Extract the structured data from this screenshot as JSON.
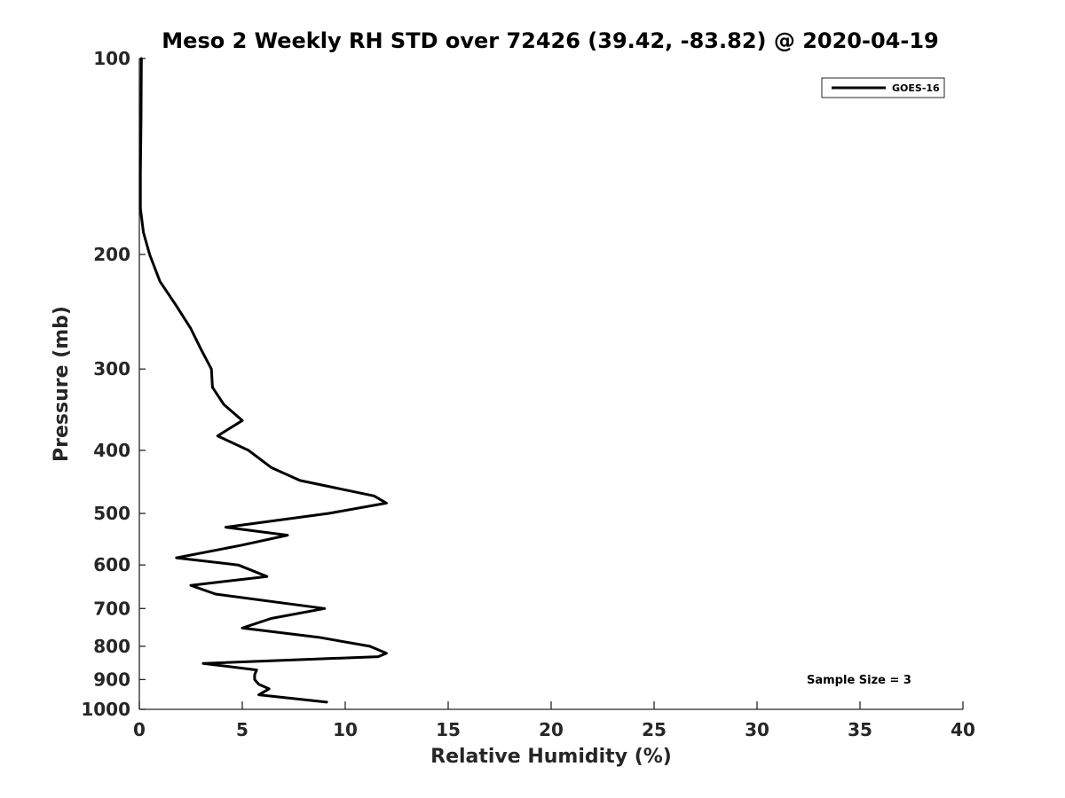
{
  "chart_data": {
    "type": "line",
    "title": "Meso 2 Weekly RH STD over 72426 (39.42, -83.82) @ 2020-04-19",
    "xlabel": "Relative Humidity (%)",
    "ylabel": "Pressure (mb)",
    "xlim": [
      0,
      40
    ],
    "ylim": [
      100,
      1000
    ],
    "y_scale": "log",
    "y_reversed": true,
    "x_ticks": [
      "0",
      "5",
      "10",
      "15",
      "20",
      "25",
      "30",
      "35",
      "40"
    ],
    "y_ticks": [
      "100",
      "200",
      "300",
      "400",
      "500",
      "600",
      "700",
      "800",
      "900",
      "1000"
    ],
    "grid": false,
    "legend": {
      "position": "top-right",
      "entries": [
        "GOES-16"
      ]
    },
    "annotation": "Sample Size = 3",
    "series": [
      {
        "name": "GOES-16",
        "color": "#000000",
        "points": [
          [
            0.1,
            100
          ],
          [
            0.08,
            125
          ],
          [
            0.05,
            150
          ],
          [
            0.05,
            170
          ],
          [
            0.2,
            185
          ],
          [
            0.5,
            200
          ],
          [
            1.0,
            220
          ],
          [
            1.8,
            240
          ],
          [
            2.5,
            260
          ],
          [
            3.0,
            280
          ],
          [
            3.5,
            300
          ],
          [
            3.55,
            320
          ],
          [
            4.1,
            340
          ],
          [
            5.0,
            360
          ],
          [
            3.8,
            380
          ],
          [
            5.3,
            400
          ],
          [
            6.4,
            425
          ],
          [
            7.8,
            445
          ],
          [
            11.4,
            470
          ],
          [
            12.0,
            482
          ],
          [
            9.2,
            500
          ],
          [
            4.2,
            525
          ],
          [
            7.2,
            540
          ],
          [
            4.9,
            560
          ],
          [
            1.8,
            585
          ],
          [
            4.8,
            600
          ],
          [
            6.2,
            625
          ],
          [
            2.5,
            645
          ],
          [
            3.7,
            665
          ],
          [
            9.0,
            700
          ],
          [
            6.4,
            725
          ],
          [
            5.0,
            750
          ],
          [
            8.7,
            775
          ],
          [
            11.2,
            800
          ],
          [
            12.0,
            820
          ],
          [
            11.6,
            830
          ],
          [
            3.1,
            850
          ],
          [
            5.7,
            870
          ],
          [
            5.6,
            885
          ],
          [
            5.6,
            900
          ],
          [
            5.8,
            915
          ],
          [
            6.3,
            930
          ],
          [
            5.8,
            950
          ],
          [
            9.1,
            975
          ]
        ]
      }
    ]
  }
}
